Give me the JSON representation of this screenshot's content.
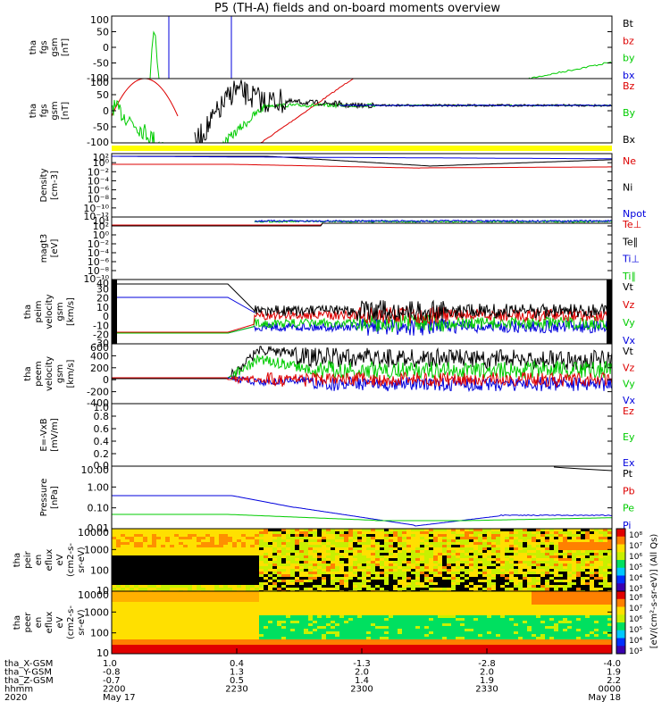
{
  "chart_data": {
    "type": "line",
    "title": "P5 (TH-A) fields and on-board moments overview",
    "panels": [
      {
        "ylabel": [
          "tha",
          "fgs",
          "gsm",
          "[nT]"
        ],
        "ticks": [
          "100",
          "50",
          "0",
          "-50",
          "-100"
        ],
        "legend": [
          {
            "name": "Bt",
            "color": "#000000"
          },
          {
            "name": "bz",
            "color": "#dd0000"
          },
          {
            "name": "by",
            "color": "#00cc00"
          },
          {
            "name": "bx",
            "color": "#0000dd"
          }
        ],
        "ylim": [
          -100,
          100
        ]
      },
      {
        "ylabel": [
          "tha",
          "fgs",
          "gsm",
          "[nT]"
        ],
        "ticks": [
          "100",
          "50",
          "0",
          "-50",
          "-100"
        ],
        "legend": [
          {
            "name": "Bz",
            "color": "#dd0000"
          },
          {
            "name": "By",
            "color": "#00cc00"
          },
          {
            "name": "Bx",
            "color": "#000000"
          }
        ],
        "ylim": [
          -100,
          100
        ]
      },
      {
        "ylabel": [
          "Density",
          "[cm-3]"
        ],
        "ticks": [
          "10²",
          "10⁰",
          "10⁻²",
          "10⁻⁴",
          "10⁻⁶",
          "10⁻⁸",
          "10⁻¹⁰",
          "10⁻¹²"
        ],
        "legend": [
          {
            "name": "Ne",
            "color": "#dd0000"
          },
          {
            "name": "Ni",
            "color": "#000000"
          },
          {
            "name": "Npot",
            "color": "#0000dd"
          }
        ]
      },
      {
        "ylabel": [
          "magt3",
          "[eV]"
        ],
        "ticks": [
          "10⁴",
          "10²",
          "10⁰",
          "10⁻²",
          "10⁻⁴",
          "10⁻⁶",
          "10⁻⁸",
          "10⁻¹⁰"
        ],
        "legend": [
          {
            "name": "Te⊥",
            "color": "#dd0000"
          },
          {
            "name": "Te∥",
            "color": "#000000"
          },
          {
            "name": "Ti⊥",
            "color": "#0000dd"
          },
          {
            "name": "Ti∥",
            "color": "#00cc00"
          }
        ]
      },
      {
        "ylabel": [
          "tha",
          "peim",
          "velocity",
          "gsm",
          "[km/s]"
        ],
        "ticks": [
          "40",
          "30",
          "20",
          "10",
          "0",
          "-10",
          "-20",
          "-30"
        ],
        "legend": [
          {
            "name": "Vt",
            "color": "#000000"
          },
          {
            "name": "Vz",
            "color": "#dd0000"
          },
          {
            "name": "Vy",
            "color": "#00cc00"
          },
          {
            "name": "Vx",
            "color": "#0000dd"
          }
        ],
        "ylim": [
          -30,
          40
        ]
      },
      {
        "ylabel": [
          "tha",
          "peem",
          "velocity",
          "gsm",
          "[km/s]"
        ],
        "ticks": [
          "600",
          "400",
          "200",
          "0",
          "-200",
          "-400"
        ],
        "legend": [
          {
            "name": "Vt",
            "color": "#000000"
          },
          {
            "name": "Vz",
            "color": "#dd0000"
          },
          {
            "name": "Vy",
            "color": "#00cc00"
          },
          {
            "name": "Vx",
            "color": "#0000dd"
          }
        ],
        "ylim": [
          -400,
          600
        ]
      },
      {
        "ylabel": [
          "E=-VxB",
          "[mV/m]"
        ],
        "ticks": [
          "1.0",
          "0.8",
          "0.6",
          "0.4",
          "0.2",
          "0.0"
        ],
        "legend": [
          {
            "name": "Ez",
            "color": "#dd0000"
          },
          {
            "name": "Ey",
            "color": "#00cc00"
          },
          {
            "name": "Ex",
            "color": "#0000dd"
          }
        ],
        "ylim": [
          0,
          1
        ]
      },
      {
        "ylabel": [
          "Pressure",
          "[nPa]"
        ],
        "ticks": [
          "10.00",
          "1.00",
          "0.10",
          "0.01"
        ],
        "legend": [
          {
            "name": "Pt",
            "color": "#000000"
          },
          {
            "name": "Pb",
            "color": "#dd0000"
          },
          {
            "name": "Pe",
            "color": "#00cc00"
          },
          {
            "name": "Pi",
            "color": "#0000dd"
          }
        ]
      },
      {
        "ylabel": [
          "tha",
          "peir",
          "en",
          "eflux",
          "eV",
          "(cm2-s-",
          "sr-eV)"
        ],
        "ticks": [
          "10000",
          "1000",
          "100",
          "10"
        ],
        "colorbar_ticks": [
          "10⁸",
          "10⁷",
          "10⁶",
          "10⁵",
          "10⁴",
          "10³"
        ]
      },
      {
        "ylabel": [
          "tha",
          "peer",
          "en",
          "eflux",
          "eV",
          "(cm2-s-",
          "sr-eV)"
        ],
        "ticks": [
          "10000",
          "1000",
          "100",
          "10"
        ],
        "colorbar_ticks": [
          "10⁸",
          "10⁷",
          "10⁶",
          "10⁵",
          "10⁴",
          "10³"
        ]
      }
    ],
    "colorbar_label": "[eV/(cm²-s-sr-eV)] (All Qs)",
    "time_axis": {
      "rows": [
        {
          "label": "tha_X-GSM",
          "values": [
            "1.0",
            "0.4",
            "-1.3",
            "-2.8",
            "-4.0"
          ]
        },
        {
          "label": "tha_Y-GSM",
          "values": [
            "-0.8",
            "1.3",
            "2.0",
            "2.0",
            "1.9"
          ]
        },
        {
          "label": "tha_Z-GSM",
          "values": [
            "-0.7",
            "0.5",
            "1.4",
            "1.9",
            "2.2"
          ]
        },
        {
          "label": "hhmm",
          "values": [
            "2200",
            "2230",
            "2300",
            "2330",
            "0000"
          ]
        },
        {
          "label": "2020",
          "values": [
            "May 17",
            "",
            "",
            "",
            "May 18"
          ]
        }
      ]
    },
    "colors": {
      "bz": "#dd0000",
      "by": "#00cc00",
      "bx": "#0000dd",
      "bt": "#000000",
      "flag": "#ffff00"
    }
  }
}
